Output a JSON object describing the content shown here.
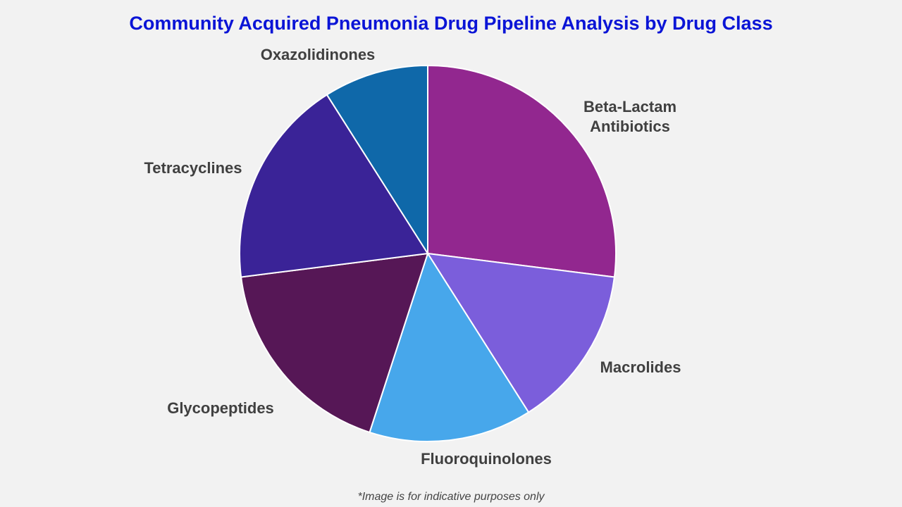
{
  "chart_data": {
    "type": "pie",
    "title": "Community Acquired Pneumonia Drug Pipeline Analysis by Drug Class",
    "categories": [
      "Beta-Lactam Antibiotics",
      "Macrolides",
      "Fluoroquinolones",
      "Glycopeptides",
      "Tetracyclines",
      "Oxazolidinones"
    ],
    "values": [
      27,
      14,
      14,
      18,
      18,
      9
    ],
    "colors": [
      "#92278f",
      "#7b5edb",
      "#47a7eb",
      "#561756",
      "#3a2397",
      "#0f68a9"
    ],
    "start_angle": "12 o'clock, clockwise",
    "legend": "none (direct labels)"
  },
  "footnote": "*Image is for indicative purposes only"
}
